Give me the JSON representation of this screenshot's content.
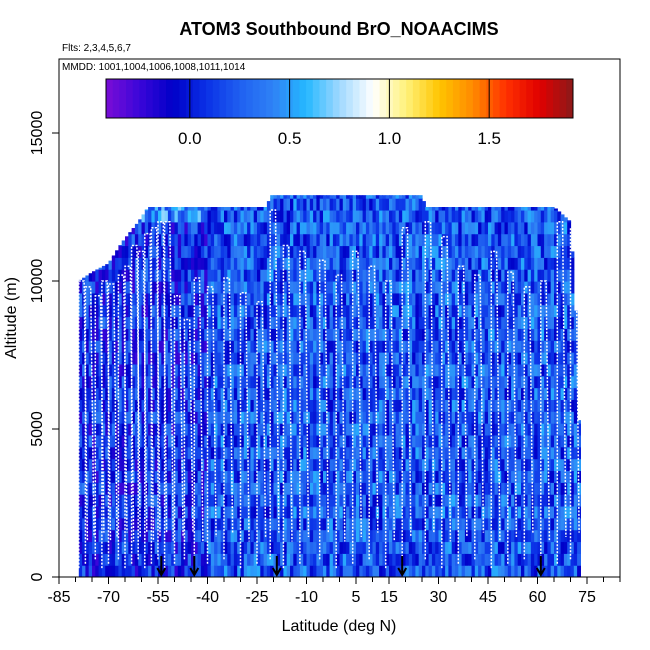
{
  "chart_data": {
    "type": "heatmap",
    "title": "ATOM3 Southbound BrO_NOAACIMS",
    "flights_label": "Flts: 2,3,4,5,6,7",
    "mmdd_label": "MMDD: 1001,1004,1006,1008,1011,1014",
    "xlabel": "Latitude (deg N)",
    "ylabel": "Altitude (m)",
    "xlim": [
      -85,
      85
    ],
    "ylim": [
      0,
      17500
    ],
    "x_ticks": [
      -85,
      -70,
      -55,
      -40,
      -25,
      -10,
      5,
      15,
      30,
      45,
      60,
      75
    ],
    "x_minor_ticks": [
      -80,
      -75,
      -65,
      -60,
      -50,
      -45,
      -35,
      -30,
      -20,
      -15,
      -5,
      0,
      10,
      20,
      25,
      35,
      40,
      50,
      55,
      65,
      70,
      80,
      85
    ],
    "y_ticks": [
      0,
      5000,
      10000,
      15000
    ],
    "colorbar": {
      "range": [
        -0.42,
        1.92
      ],
      "ticks": [
        0.0,
        0.5,
        1.0,
        1.5
      ],
      "tick_labels": [
        "0.0",
        "0.5",
        "1.0",
        "1.5"
      ],
      "colors": [
        "#7a0dd6",
        "#3b06d9",
        "#0000c8",
        "#0a30e6",
        "#1f5ff0",
        "#2f82f5",
        "#25b8ff",
        "#9fd8ff",
        "#ffffff",
        "#fff27a",
        "#ffc400",
        "#ff8a00",
        "#ff3000",
        "#e00000",
        "#8b1a1a"
      ]
    },
    "field_value_range": [
      -0.1,
      0.55
    ],
    "coverage": [
      {
        "lat": -79,
        "top": 10000
      },
      {
        "lat": -75,
        "top": 10300
      },
      {
        "lat": -70,
        "top": 10600
      },
      {
        "lat": -66,
        "top": 11300
      },
      {
        "lat": -61,
        "top": 12000
      },
      {
        "lat": -58,
        "top": 12500
      },
      {
        "lat": -22,
        "top": 12500
      },
      {
        "lat": -21,
        "top": 12900
      },
      {
        "lat": 25,
        "top": 12900
      },
      {
        "lat": 26,
        "top": 12500
      },
      {
        "lat": 65,
        "top": 12500
      },
      {
        "lat": 70,
        "top": 12000
      },
      {
        "lat": 72,
        "top": 8000
      },
      {
        "lat": 72.5,
        "top": 5300
      },
      {
        "lat": 72.5,
        "top": 2300
      }
    ],
    "flight_profiles": [
      {
        "lat": -79,
        "top": 10000
      },
      {
        "lat": -77,
        "top": 9800
      },
      {
        "lat": -74,
        "top": 9500
      },
      {
        "lat": -72,
        "top": 10000
      },
      {
        "lat": -70,
        "top": 9900
      },
      {
        "lat": -67,
        "top": 10200
      },
      {
        "lat": -65,
        "top": 10500
      },
      {
        "lat": -63,
        "top": 11200
      },
      {
        "lat": -61,
        "top": 11000
      },
      {
        "lat": -59,
        "top": 11600
      },
      {
        "lat": -57,
        "top": 11800
      },
      {
        "lat": -55,
        "top": 12000
      },
      {
        "lat": -53,
        "top": 12000
      },
      {
        "lat": -50,
        "top": 9500
      },
      {
        "lat": -47,
        "top": 8700
      },
      {
        "lat": -44,
        "top": 10100
      },
      {
        "lat": -40,
        "top": 9800
      },
      {
        "lat": -35,
        "top": 10100
      },
      {
        "lat": -30,
        "top": 9600
      },
      {
        "lat": -25,
        "top": 9300
      },
      {
        "lat": -21,
        "top": 12400
      },
      {
        "lat": -17,
        "top": 11200
      },
      {
        "lat": -12,
        "top": 11000
      },
      {
        "lat": -6,
        "top": 10700
      },
      {
        "lat": -1,
        "top": 10200
      },
      {
        "lat": 4,
        "top": 11000
      },
      {
        "lat": 9,
        "top": 10500
      },
      {
        "lat": 14,
        "top": 10000
      },
      {
        "lat": 19,
        "top": 11800
      },
      {
        "lat": 26,
        "top": 12000
      },
      {
        "lat": 31,
        "top": 11500
      },
      {
        "lat": 36,
        "top": 10500
      },
      {
        "lat": 41,
        "top": 10200
      },
      {
        "lat": 46,
        "top": 11000
      },
      {
        "lat": 51,
        "top": 10300
      },
      {
        "lat": 56,
        "top": 9800
      },
      {
        "lat": 61,
        "top": 10000
      },
      {
        "lat": 66,
        "top": 12000
      },
      {
        "lat": 70,
        "top": 11800
      }
    ],
    "arrows_lat": [
      -54,
      -44,
      -19,
      19,
      61
    ]
  }
}
